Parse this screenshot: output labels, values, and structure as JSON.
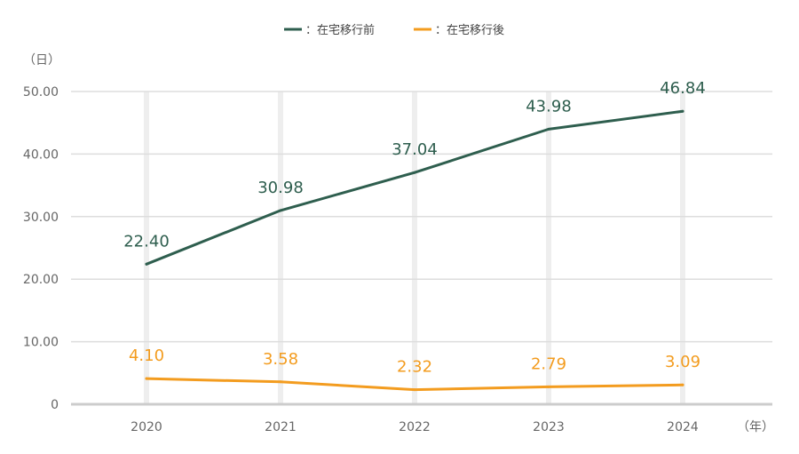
{
  "chart_data": {
    "type": "line",
    "x": [
      "2020",
      "2021",
      "2022",
      "2023",
      "2024"
    ],
    "series": [
      {
        "name": "：在宅移行前",
        "color": "#2e5e4e",
        "values": [
          22.4,
          30.98,
          37.04,
          43.98,
          46.84
        ],
        "labels": [
          "22.40",
          "30.98",
          "37.04",
          "43.98",
          "46.84"
        ]
      },
      {
        "name": "：在宅移行後",
        "color": "#f39c1f",
        "values": [
          4.1,
          3.58,
          2.32,
          2.79,
          3.09
        ],
        "labels": [
          "4.10",
          "3.58",
          "2.32",
          "2.79",
          "3.09"
        ]
      }
    ],
    "y_ticks": [
      0,
      10,
      20,
      30,
      40,
      50
    ],
    "y_tick_labels": [
      "0",
      "10.00",
      "20.00",
      "30.00",
      "40.00",
      "50.00"
    ],
    "ylim": [
      0,
      50
    ],
    "ylabel": "（日）",
    "xlabel": "（年）",
    "legend_position": "top-center",
    "grid": true
  }
}
